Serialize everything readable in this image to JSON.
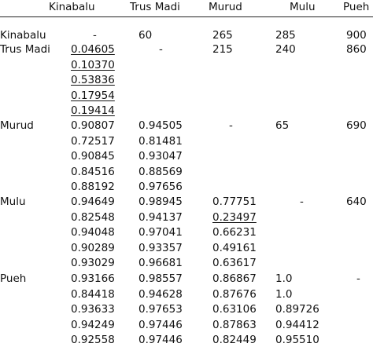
{
  "table": {
    "columns": [
      "Kinabalu",
      "Trus Madi",
      "Murud",
      "Mulu",
      "Pueh"
    ],
    "rows": [
      {
        "label": "Kinabalu",
        "cells": [
          [
            "-"
          ],
          [
            "60"
          ],
          [
            "265"
          ],
          [
            "285"
          ],
          [
            "900"
          ]
        ]
      },
      {
        "label": "Trus Madi",
        "cells": [
          [
            "0.04605",
            "0.10370",
            "0.53836",
            "0.17954",
            "0.19414"
          ],
          [
            "-"
          ],
          [
            "215"
          ],
          [
            "240"
          ],
          [
            "860"
          ]
        ]
      },
      {
        "label": "Murud",
        "cells": [
          [
            "0.90807",
            "0.72517",
            "0.90845",
            "0.84516",
            "0.88192"
          ],
          [
            "0.94505",
            "0.81481",
            "0.93047",
            "0.88569",
            "0.97656"
          ],
          [
            "-"
          ],
          [
            "65"
          ],
          [
            "690"
          ]
        ]
      },
      {
        "label": "Mulu",
        "cells": [
          [
            "0.94649",
            "0.82548",
            "0.94048",
            "0.90289",
            "0.93029"
          ],
          [
            "0.98945",
            "0.94137",
            "0.97041",
            "0.93357",
            "0.96681"
          ],
          [
            "0.77751",
            "0.23497",
            "0.66231",
            "0.49161",
            "0.63617"
          ],
          [
            "-"
          ],
          [
            "640"
          ]
        ]
      },
      {
        "label": "Pueh",
        "cells": [
          [
            "0.93166",
            "0.84418",
            "0.93633",
            "0.94249",
            "0.92558"
          ],
          [
            "0.98557",
            "0.94628",
            "0.97653",
            "0.97446",
            "0.97446"
          ],
          [
            "0.86867",
            "0.87676",
            "0.63106",
            "0.87863",
            "0.82449"
          ],
          [
            "1.0",
            "1.0",
            "0.89726",
            "0.94412",
            "0.95510"
          ],
          [
            "-"
          ]
        ]
      }
    ]
  }
}
